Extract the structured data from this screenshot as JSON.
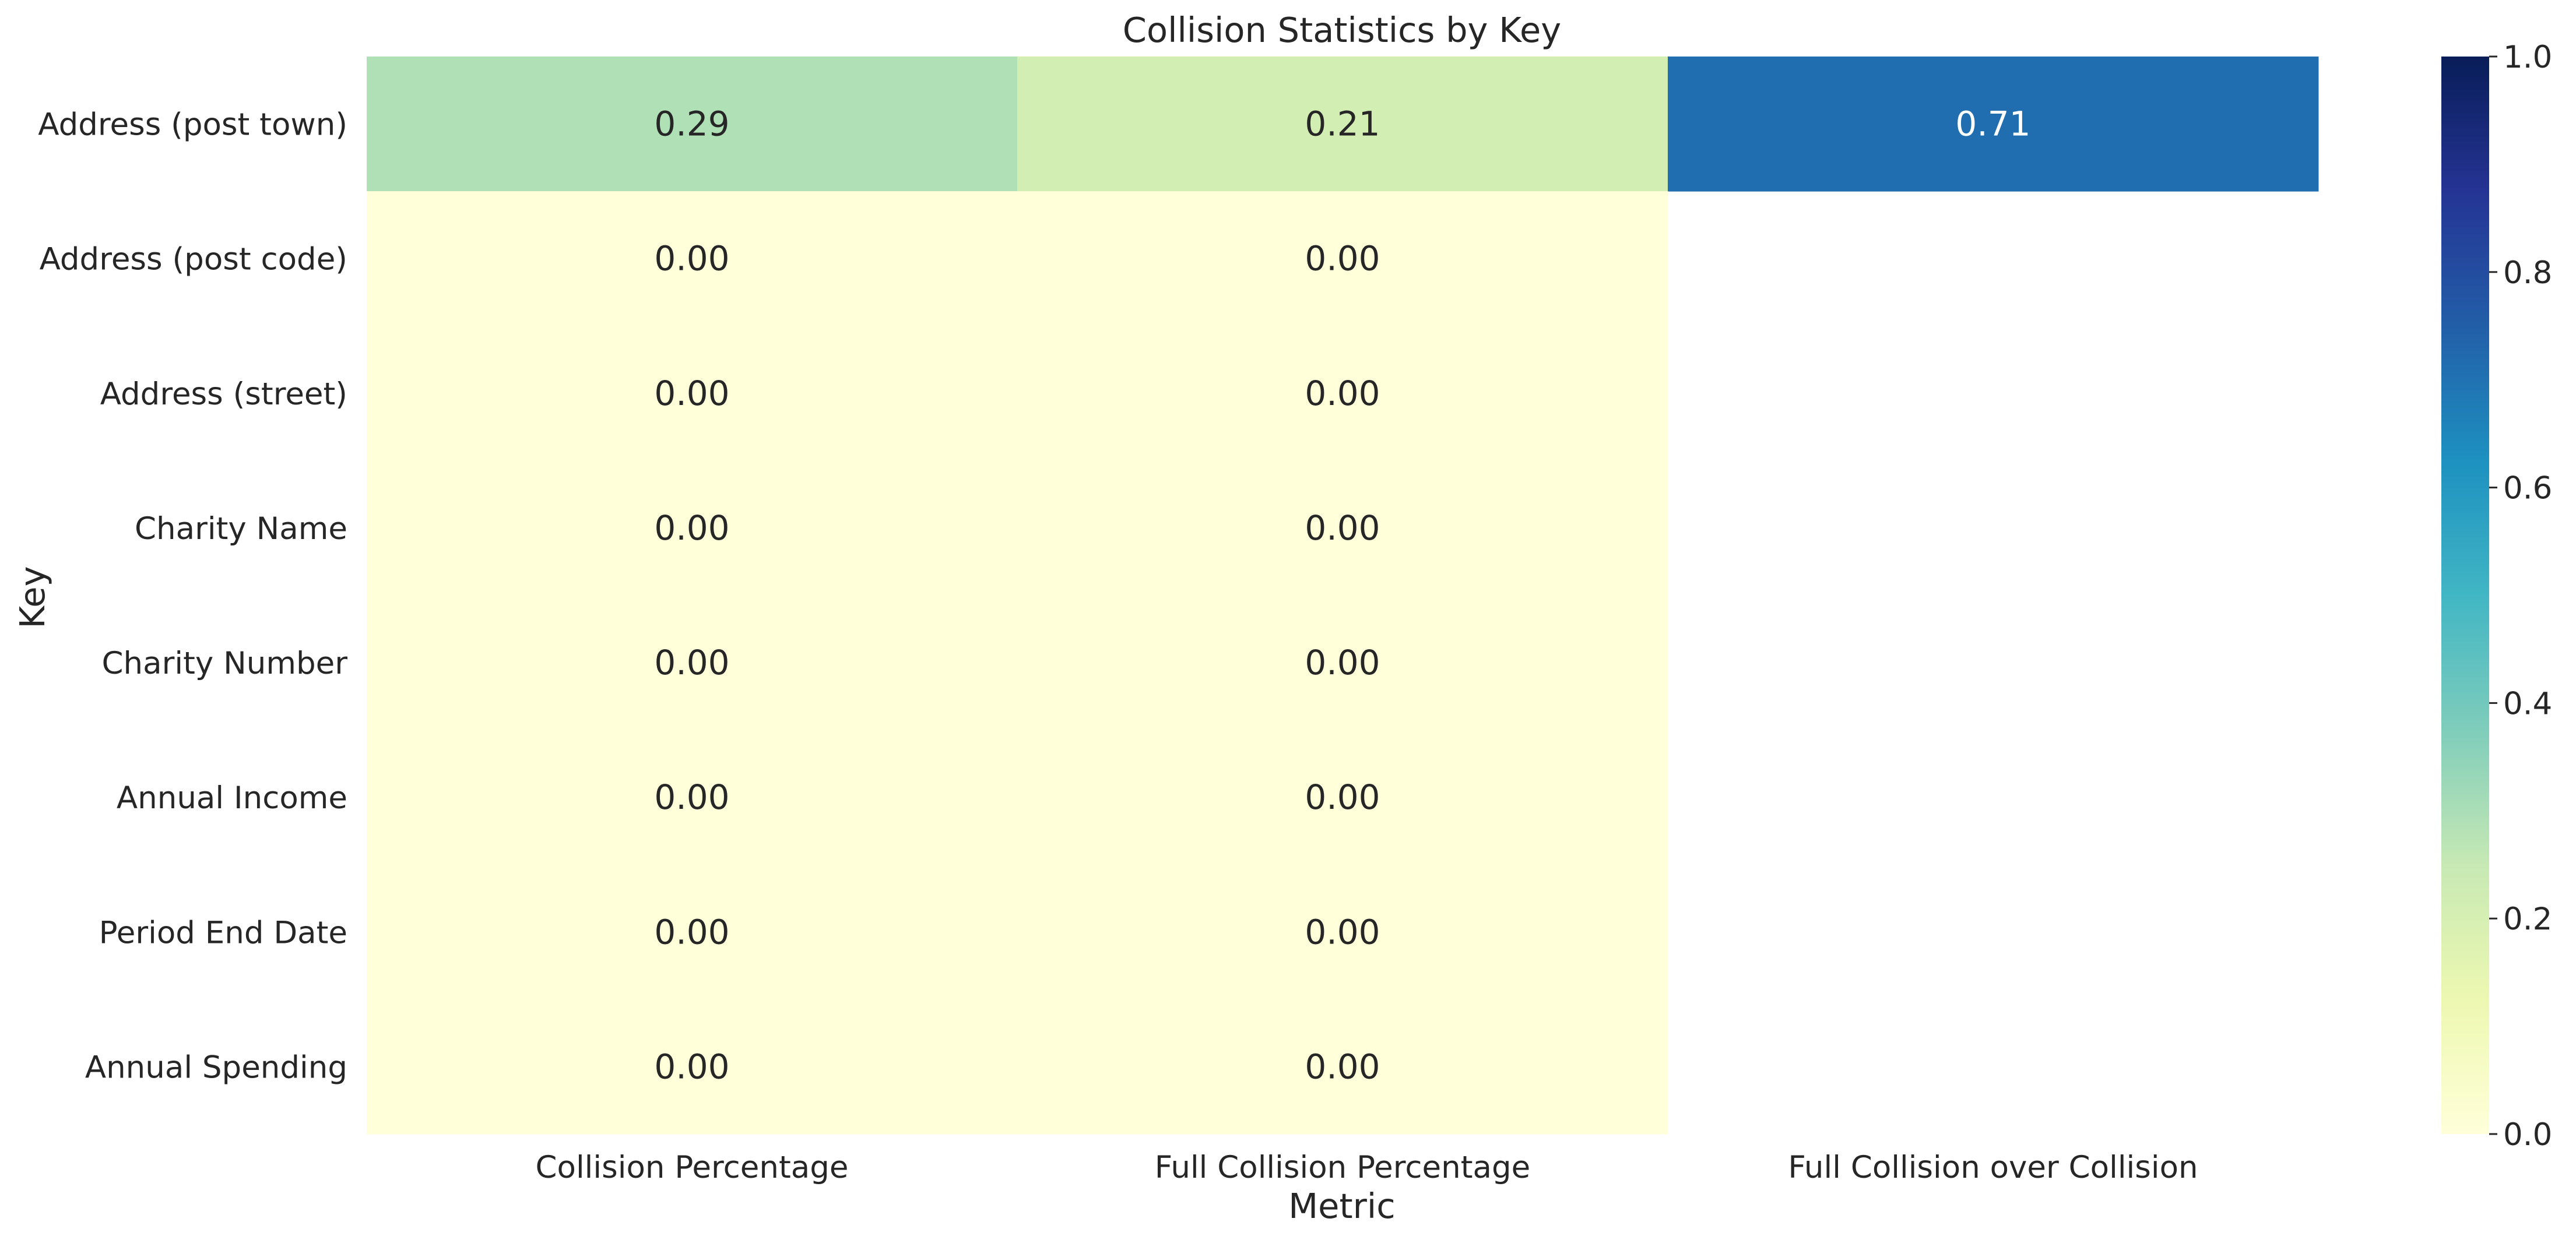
{
  "chart_data": {
    "type": "heatmap",
    "title": "Collision Statistics by Key",
    "xlabel": "Metric",
    "ylabel": "Key",
    "colormap": "YlGnBu",
    "columns": [
      "Collision Percentage",
      "Full Collision Percentage",
      "Full Collision over Collision"
    ],
    "rows": [
      "Address (post town)",
      "Address (post code)",
      "Address (street)",
      "Charity Name",
      "Charity Number",
      "Annual Income",
      "Period End Date",
      "Annual Spending"
    ],
    "values": [
      [
        0.29,
        0.21,
        0.71
      ],
      [
        0.0,
        0.0,
        null
      ],
      [
        0.0,
        0.0,
        null
      ],
      [
        0.0,
        0.0,
        null
      ],
      [
        0.0,
        0.0,
        null
      ],
      [
        0.0,
        0.0,
        null
      ],
      [
        0.0,
        0.0,
        null
      ],
      [
        0.0,
        0.0,
        null
      ]
    ],
    "value_labels": [
      [
        "0.29",
        "0.21",
        "0.71"
      ],
      [
        "0.00",
        "0.00",
        ""
      ],
      [
        "0.00",
        "0.00",
        ""
      ],
      [
        "0.00",
        "0.00",
        ""
      ],
      [
        "0.00",
        "0.00",
        ""
      ],
      [
        "0.00",
        "0.00",
        ""
      ],
      [
        "0.00",
        "0.00",
        ""
      ],
      [
        "0.00",
        "0.00",
        ""
      ]
    ],
    "colorbar": {
      "range": [
        0.0,
        1.0
      ],
      "ticks": [
        0.0,
        0.2,
        0.4,
        0.6,
        0.8,
        1.0
      ],
      "tick_labels": [
        "0.0",
        "0.2",
        "0.4",
        "0.6",
        "0.8",
        "1.0"
      ]
    }
  }
}
